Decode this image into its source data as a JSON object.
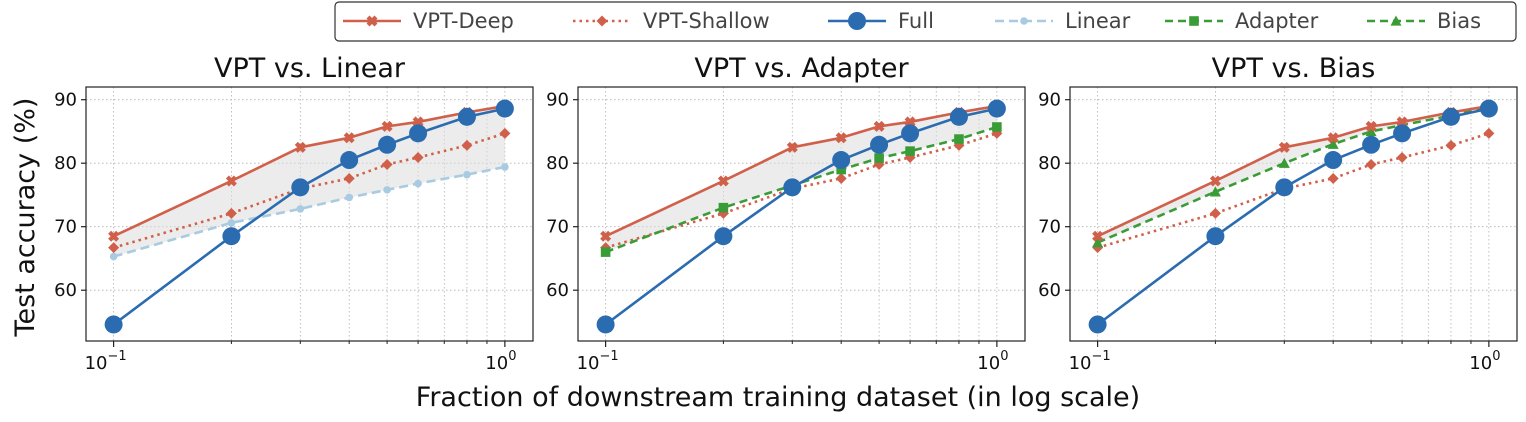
{
  "chart_data": {
    "type": "line",
    "xscale": "log",
    "xlabel": "Fraction of downstream training dataset (in log scale)",
    "ylabel": "Test accuracy (%)",
    "xlim": [
      0.085,
      1.18
    ],
    "ylim": [
      52,
      92
    ],
    "yticks": [
      60,
      70,
      80,
      90
    ],
    "xticks": [
      {
        "base": "10",
        "exp": "−1"
      },
      {
        "base": "10",
        "exp": "0"
      }
    ],
    "x": [
      0.1,
      0.2,
      0.3,
      0.4,
      0.5,
      0.6,
      0.8,
      1.0
    ],
    "legend_position": "top",
    "series": {
      "vpt_deep": {
        "name": "VPT-Deep",
        "color": "#d1604a",
        "values": [
          68.5,
          77.2,
          82.5,
          84.0,
          85.8,
          86.5,
          88.0,
          89.0
        ]
      },
      "vpt_shallow": {
        "name": "VPT-Shallow",
        "color": "#d1604a",
        "values": [
          66.7,
          72.1,
          76.0,
          77.6,
          79.8,
          80.9,
          82.8,
          84.7
        ]
      },
      "full": {
        "name": "Full",
        "color": "#2b6cb0",
        "values": [
          54.6,
          68.5,
          76.2,
          80.5,
          82.9,
          84.7,
          87.3,
          88.6
        ]
      },
      "linear": {
        "name": "Linear",
        "color": "#a8cbe2",
        "values": [
          65.3,
          70.6,
          72.8,
          74.6,
          75.8,
          76.8,
          78.2,
          79.4
        ]
      },
      "adapter": {
        "name": "Adapter",
        "color": "#3a9c36",
        "values": [
          66.0,
          73.0,
          76.5,
          79.0,
          80.8,
          81.9,
          83.8,
          85.7
        ]
      },
      "bias": {
        "name": "Bias",
        "color": "#3a9c36",
        "values": [
          67.5,
          75.5,
          80.0,
          83.0,
          85.0,
          86.0,
          87.5,
          88.8
        ]
      }
    },
    "panels": [
      {
        "title": "VPT vs. Linear",
        "series": [
          "linear",
          "vpt_shallow",
          "vpt_deep",
          "full"
        ],
        "shade_between": [
          "vpt_deep",
          "linear"
        ]
      },
      {
        "title": "VPT vs. Adapter",
        "series": [
          "vpt_shallow",
          "adapter",
          "vpt_deep",
          "full"
        ],
        "shade_between": [
          "vpt_deep",
          "adapter"
        ]
      },
      {
        "title": "VPT vs. Bias",
        "series": [
          "vpt_shallow",
          "bias",
          "vpt_deep",
          "full"
        ],
        "shade_between": [
          "vpt_deep",
          "bias"
        ]
      }
    ]
  }
}
